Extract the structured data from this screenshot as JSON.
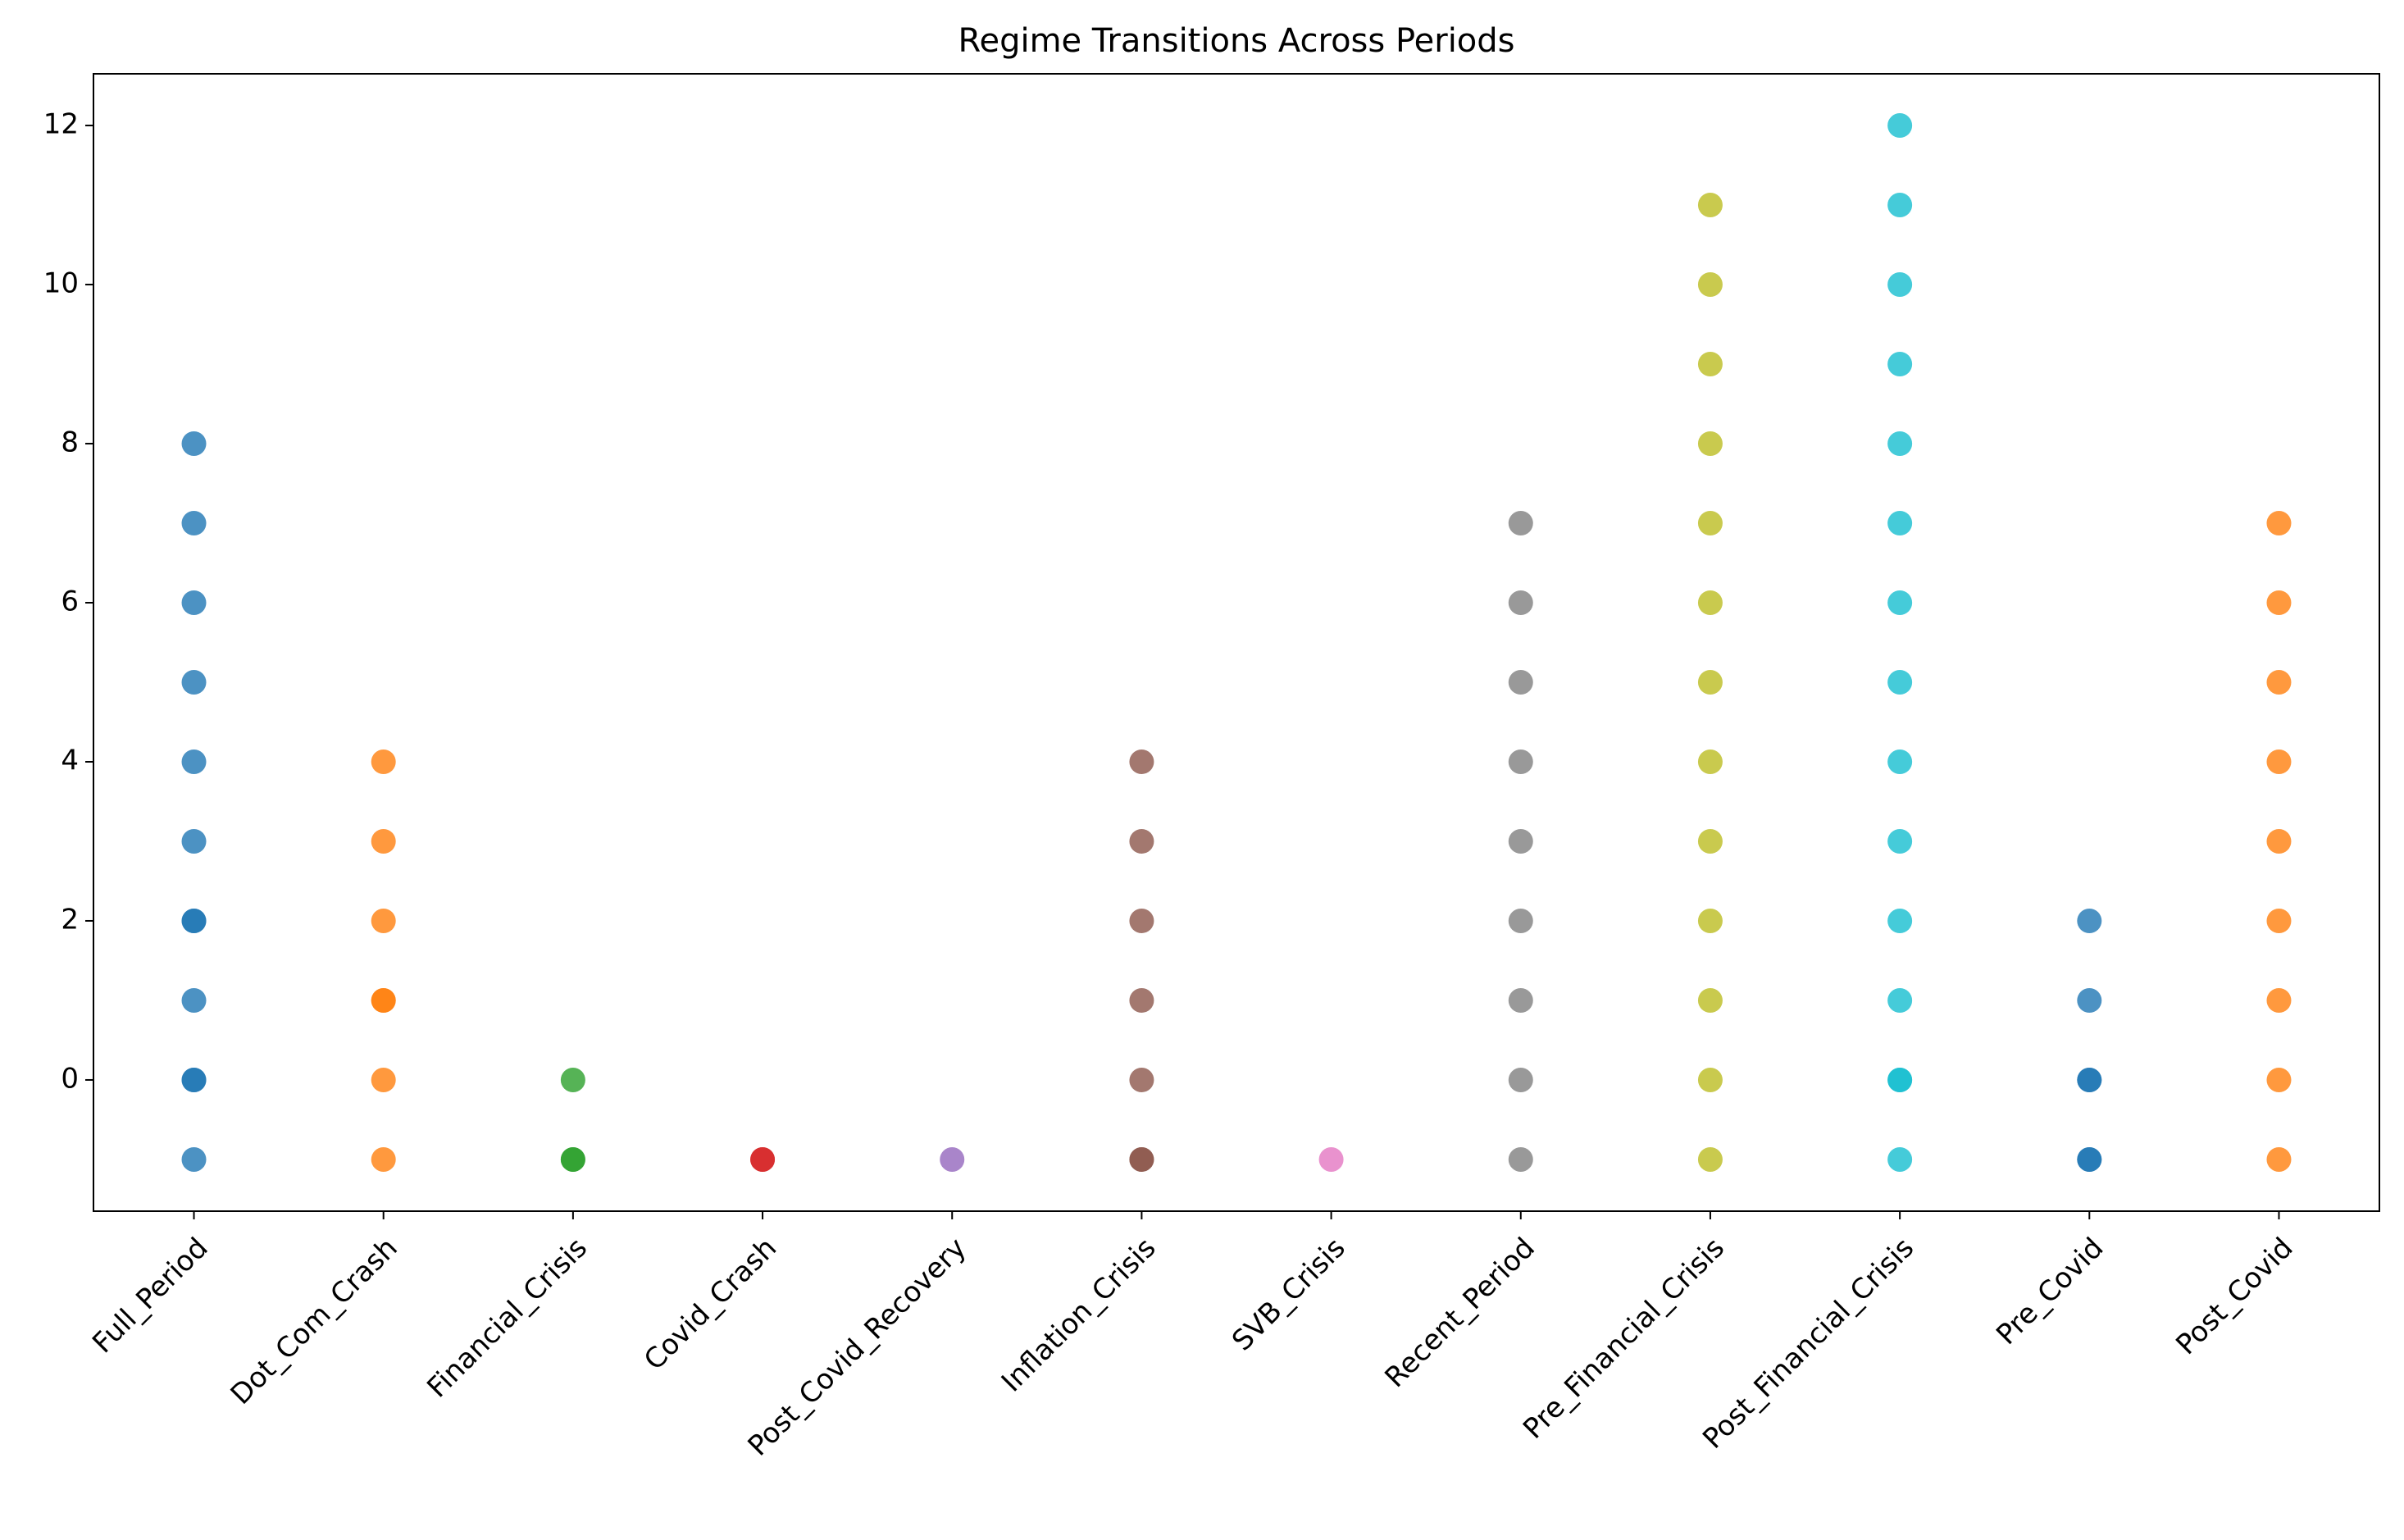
{
  "chart_data": {
    "type": "strip",
    "title": "Regime Transitions Across Periods",
    "categories": [
      "Full_Period",
      "Dot_Com_Crash",
      "Financial_Crisis",
      "Covid_Crash",
      "Post_Covid_Recovery",
      "Inflation_Crisis",
      "SVB_Crisis",
      "Recent_Period",
      "Pre_Financial_Crisis",
      "Post_Financial_Crisis",
      "Pre_Covid",
      "Post_Covid"
    ],
    "colors": [
      "#1f77b4",
      "#ff7f0e",
      "#2ca02c",
      "#d62728",
      "#9467bd",
      "#8c564b",
      "#e377c2",
      "#7f7f7f",
      "#bcbd22",
      "#17becf",
      "#1f77b4",
      "#ff7f0e"
    ],
    "values": [
      [
        -1,
        0,
        0,
        1,
        2,
        2,
        3,
        4,
        5,
        6,
        7,
        8
      ],
      [
        -1,
        0,
        1,
        1,
        2,
        3,
        4
      ],
      [
        -1,
        -1,
        0
      ],
      [
        -1,
        -1
      ],
      [
        -1
      ],
      [
        -1,
        -1,
        0,
        1,
        2,
        3,
        4
      ],
      [
        -1
      ],
      [
        -1,
        0,
        1,
        2,
        3,
        4,
        5,
        6,
        7
      ],
      [
        -1,
        0,
        1,
        2,
        3,
        4,
        5,
        6,
        7,
        8,
        9,
        10,
        11
      ],
      [
        -1,
        0,
        0,
        1,
        2,
        3,
        4,
        5,
        6,
        7,
        8,
        9,
        10,
        11,
        12
      ],
      [
        -1,
        -1,
        0,
        0,
        1,
        2
      ],
      [
        -1,
        0,
        1,
        2,
        3,
        4,
        5,
        6,
        7
      ]
    ],
    "ylim": [
      -1.65,
      12.65
    ],
    "yticks": [
      0,
      2,
      4,
      6,
      8,
      10,
      12
    ]
  }
}
